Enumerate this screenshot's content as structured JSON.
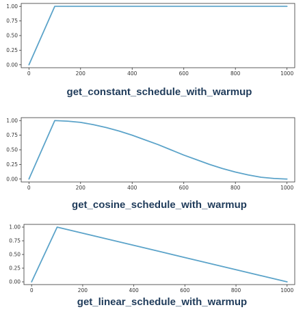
{
  "chart_data": [
    {
      "type": "line",
      "title": "get_constant_schedule_with_warmup",
      "xlabel": "",
      "ylabel": "",
      "xlim": [
        -30,
        1030
      ],
      "ylim": [
        -0.05,
        1.05
      ],
      "x_ticks": [
        0,
        200,
        400,
        600,
        800,
        1000
      ],
      "y_ticks": [
        0.0,
        0.25,
        0.5,
        0.75,
        1.0
      ],
      "x_tick_labels": [
        "0",
        "200",
        "400",
        "600",
        "800",
        "1000"
      ],
      "y_tick_labels": [
        "0.00",
        "0.25",
        "0.50",
        "0.75",
        "1.00"
      ],
      "grid": false,
      "line_color": "#5ba3c9",
      "series": [
        {
          "x": [
            0,
            100,
            200,
            300,
            400,
            500,
            600,
            700,
            800,
            900,
            1000
          ],
          "values": [
            0.0,
            1.0,
            1.0,
            1.0,
            1.0,
            1.0,
            1.0,
            1.0,
            1.0,
            1.0,
            1.0
          ]
        }
      ]
    },
    {
      "type": "line",
      "title": "get_cosine_schedule_with_warmup",
      "xlabel": "",
      "ylabel": "",
      "xlim": [
        -30,
        1030
      ],
      "ylim": [
        -0.05,
        1.05
      ],
      "x_ticks": [
        0,
        200,
        400,
        600,
        800,
        1000
      ],
      "y_ticks": [
        0.0,
        0.25,
        0.5,
        0.75,
        1.0
      ],
      "x_tick_labels": [
        "0",
        "200",
        "400",
        "600",
        "800",
        "1000"
      ],
      "y_tick_labels": [
        "0.00",
        "0.25",
        "0.50",
        "0.75",
        "1.00"
      ],
      "grid": false,
      "line_color": "#5ba3c9",
      "series": [
        {
          "x": [
            0,
            100,
            150,
            200,
            250,
            300,
            350,
            400,
            450,
            500,
            550,
            600,
            650,
            700,
            750,
            800,
            850,
            900,
            950,
            1000
          ],
          "values": [
            0.0,
            1.0,
            0.99,
            0.97,
            0.93,
            0.88,
            0.82,
            0.75,
            0.67,
            0.59,
            0.5,
            0.41,
            0.33,
            0.25,
            0.18,
            0.12,
            0.07,
            0.03,
            0.01,
            0.0
          ]
        }
      ]
    },
    {
      "type": "line",
      "title": "get_linear_schedule_with_warmup",
      "xlabel": "",
      "ylabel": "",
      "xlim": [
        -30,
        1030
      ],
      "ylim": [
        -0.05,
        1.05
      ],
      "x_ticks": [
        0,
        200,
        400,
        600,
        800,
        1000
      ],
      "y_ticks": [
        0.0,
        0.25,
        0.5,
        0.75,
        1.0
      ],
      "x_tick_labels": [
        "0",
        "200",
        "400",
        "600",
        "800",
        "1000"
      ],
      "y_tick_labels": [
        "0.00",
        "0.25",
        "0.50",
        "0.75",
        "1.00"
      ],
      "grid": false,
      "line_color": "#5ba3c9",
      "series": [
        {
          "x": [
            0,
            100,
            200,
            300,
            400,
            500,
            600,
            700,
            800,
            900,
            1000
          ],
          "values": [
            0.0,
            1.0,
            0.889,
            0.778,
            0.667,
            0.556,
            0.444,
            0.333,
            0.222,
            0.111,
            0.0
          ]
        }
      ]
    }
  ]
}
